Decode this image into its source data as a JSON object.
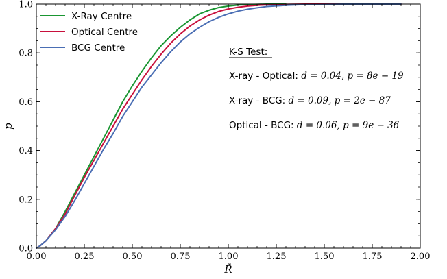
{
  "chart_data": {
    "type": "line",
    "xlabel": "R̃",
    "ylabel": "p",
    "xlim": [
      0.0,
      2.0
    ],
    "ylim": [
      0.0,
      1.0
    ],
    "x_ticks": [
      0.0,
      0.25,
      0.5,
      0.75,
      1.0,
      1.25,
      1.5,
      1.75,
      2.0
    ],
    "x_tick_labels": [
      "0.00",
      "0.25",
      "0.50",
      "0.75",
      "1.00",
      "1.25",
      "1.50",
      "1.75",
      "2.00"
    ],
    "y_ticks": [
      0.0,
      0.2,
      0.4,
      0.6,
      0.8,
      1.0
    ],
    "y_tick_labels": [
      "0.0",
      "0.2",
      "0.4",
      "0.6",
      "0.8",
      "1.0"
    ],
    "grid": false,
    "legend_position": "top-left",
    "series": [
      {
        "name": "X-Ray Centre",
        "color": "#1a9632",
        "x": [
          0.0,
          0.02,
          0.05,
          0.1,
          0.15,
          0.2,
          0.25,
          0.3,
          0.35,
          0.4,
          0.45,
          0.5,
          0.55,
          0.6,
          0.65,
          0.7,
          0.75,
          0.8,
          0.85,
          0.9,
          0.95,
          1.0,
          1.05,
          1.1,
          1.15,
          1.2,
          1.3
        ],
        "y": [
          0.0,
          0.01,
          0.03,
          0.08,
          0.15,
          0.225,
          0.3,
          0.375,
          0.45,
          0.525,
          0.6,
          0.665,
          0.725,
          0.78,
          0.83,
          0.87,
          0.905,
          0.935,
          0.96,
          0.975,
          0.986,
          0.992,
          0.996,
          0.998,
          0.999,
          1.0,
          1.0
        ]
      },
      {
        "name": "Optical Centre",
        "color": "#c8103c",
        "x": [
          0.0,
          0.02,
          0.05,
          0.1,
          0.15,
          0.2,
          0.25,
          0.3,
          0.35,
          0.4,
          0.45,
          0.5,
          0.55,
          0.6,
          0.65,
          0.7,
          0.75,
          0.8,
          0.85,
          0.9,
          0.95,
          1.0,
          1.05,
          1.1,
          1.15,
          1.2,
          1.3,
          1.4,
          1.5,
          1.6,
          1.7,
          1.9
        ],
        "y": [
          0.0,
          0.01,
          0.03,
          0.08,
          0.14,
          0.215,
          0.29,
          0.36,
          0.43,
          0.5,
          0.57,
          0.63,
          0.69,
          0.745,
          0.795,
          0.84,
          0.878,
          0.91,
          0.935,
          0.955,
          0.97,
          0.98,
          0.987,
          0.992,
          0.995,
          0.997,
          0.999,
          1.0,
          1.0,
          1.0,
          1.0,
          1.0
        ]
      },
      {
        "name": "BCG Centre",
        "color": "#4a6eb4",
        "x": [
          0.0,
          0.02,
          0.05,
          0.1,
          0.15,
          0.2,
          0.25,
          0.3,
          0.35,
          0.4,
          0.45,
          0.5,
          0.55,
          0.6,
          0.65,
          0.7,
          0.75,
          0.8,
          0.85,
          0.9,
          0.95,
          1.0,
          1.05,
          1.1,
          1.15,
          1.2,
          1.3,
          1.4,
          1.5,
          1.6,
          1.7,
          1.8,
          1.9
        ],
        "y": [
          0.0,
          0.01,
          0.03,
          0.075,
          0.13,
          0.195,
          0.265,
          0.335,
          0.405,
          0.47,
          0.54,
          0.6,
          0.66,
          0.71,
          0.76,
          0.805,
          0.845,
          0.878,
          0.905,
          0.928,
          0.946,
          0.96,
          0.971,
          0.979,
          0.985,
          0.99,
          0.995,
          0.998,
          0.999,
          1.0,
          1.0,
          1.0,
          1.0
        ]
      }
    ],
    "annotations": {
      "heading": "K-S Test:",
      "lines": [
        {
          "label": "X-ray - Optical: ",
          "stats": "d = 0.04, p = 8e − 19"
        },
        {
          "label": "X-ray - BCG: ",
          "stats": "d = 0.09, p = 2e − 87"
        },
        {
          "label": "Optical - BCG: ",
          "stats": "d = 0.06, p = 9e − 36"
        }
      ]
    }
  }
}
